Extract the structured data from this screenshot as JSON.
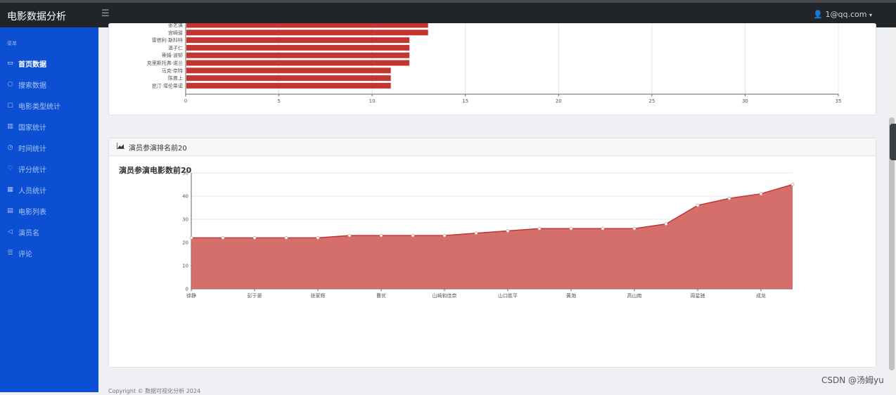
{
  "app": {
    "title": "电影数据分析",
    "menu_icon": "menu-icon"
  },
  "user": {
    "email": "1@qq.com",
    "icon": "user-icon",
    "caret_icon": "caret-down-icon"
  },
  "sidebar": {
    "heading": "菜单",
    "items": [
      {
        "label": "首页数据",
        "icon": "monitor-icon",
        "active": true
      },
      {
        "label": "搜索数据",
        "icon": "search-icon",
        "active": false
      },
      {
        "label": "电影类型统计",
        "icon": "copy-icon",
        "active": false
      },
      {
        "label": "国家统计",
        "icon": "columns-icon",
        "active": false
      },
      {
        "label": "时间统计",
        "icon": "clock-icon",
        "active": false
      },
      {
        "label": "评分统计",
        "icon": "heart-icon",
        "active": false
      },
      {
        "label": "人员统计",
        "icon": "building-icon",
        "active": false
      },
      {
        "label": "电影列表",
        "icon": "table-icon",
        "active": false
      },
      {
        "label": "演员名",
        "icon": "send-icon",
        "active": false
      },
      {
        "label": "评论",
        "icon": "list-icon",
        "active": false
      }
    ]
  },
  "card2": {
    "header": "演员参演排名前20",
    "header_icon": "area-chart-icon"
  },
  "chart_data": [
    {
      "type": "bar",
      "orientation": "horizontal",
      "color": "#c23531",
      "categories": [
        "张艺谋",
        "宫崎骏",
        "雷德利·斯科特",
        "温子仁",
        "蒂姆·波顿",
        "克里斯托弗·诺兰",
        "马克·奈特",
        "陈嘉上",
        "昆汀·塔伦蒂诺"
      ],
      "values": [
        13,
        13,
        12,
        12,
        12,
        12,
        11,
        11,
        11
      ],
      "x_ticks": [
        "0",
        "5",
        "10",
        "15",
        "20",
        "25",
        "30",
        "35"
      ],
      "xlim": [
        0,
        35
      ],
      "grid": true
    },
    {
      "type": "area",
      "title": "演员参演电影数前20",
      "color": "#c23531",
      "categories": [
        "徐静",
        "",
        "彭于晏",
        "",
        "张家辉",
        "",
        "曹优",
        "",
        "山崎和佳奈",
        "",
        "山口胜平",
        "",
        "黄渤",
        "",
        "高山南",
        "",
        "周星驰",
        "",
        "成龙",
        ""
      ],
      "values": [
        22,
        22,
        22,
        22,
        22,
        23,
        23,
        23,
        23,
        24,
        25,
        26,
        26,
        26,
        26,
        28,
        36,
        39,
        41,
        45
      ],
      "y_ticks": [
        "0",
        "10",
        "20",
        "30",
        "40",
        "50"
      ],
      "ylim": [
        0,
        50
      ],
      "grid": true
    }
  ],
  "footer": {
    "text": "Copyright © 数据可视化分析 2024"
  },
  "watermark": {
    "text": "CSDN @汤姆yu"
  }
}
